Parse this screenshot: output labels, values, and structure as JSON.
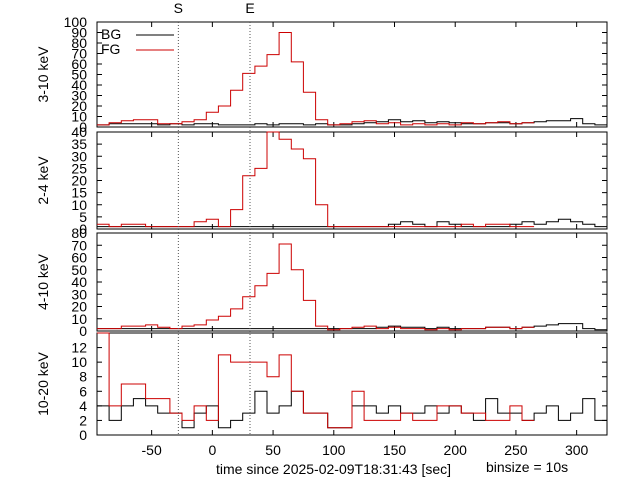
{
  "chart_data": {
    "type": "line",
    "step": true,
    "binsize_label": "binsize = 10s",
    "xlabel": "time since 2025-02-09T18:31:43 [sec]",
    "xlim": [
      -95,
      325
    ],
    "xticks": [
      -50,
      0,
      50,
      100,
      150,
      200,
      250,
      300
    ],
    "grid": false,
    "legend": {
      "placement": "top-left",
      "entries": [
        {
          "label": "BG",
          "color": "#000000"
        },
        {
          "label": "FG",
          "color": "#cc0000"
        }
      ]
    },
    "markers": [
      {
        "label": "S",
        "x": -28
      },
      {
        "label": "E",
        "x": 31
      }
    ],
    "bin_edges": [
      -95,
      -85,
      -75,
      -65,
      -55,
      -45,
      -35,
      -25,
      -15,
      -5,
      5,
      15,
      25,
      35,
      45,
      55,
      65,
      75,
      85,
      95,
      105,
      115,
      125,
      135,
      145,
      155,
      165,
      175,
      185,
      195,
      205,
      215,
      225,
      235,
      245,
      255,
      265,
      275,
      285,
      295,
      305,
      315,
      325
    ],
    "panels": [
      {
        "ylabel": "3-10 keV",
        "ylim": [
          0,
          100
        ],
        "yticks": [
          0,
          10,
          20,
          30,
          40,
          50,
          60,
          70,
          80,
          90,
          100
        ],
        "series": [
          {
            "name": "BG",
            "color": "#000000",
            "values": [
              2,
              3,
              3,
              3,
              3,
              2,
              3,
              2,
              3,
              3,
              2,
              2,
              2,
              3,
              2,
              3,
              3,
              2,
              3,
              2,
              2,
              3,
              4,
              5,
              7,
              5,
              6,
              4,
              5,
              4,
              3,
              3,
              4,
              4,
              3,
              4,
              5,
              6,
              6,
              8,
              3,
              2
            ]
          },
          {
            "name": "FG",
            "color": "#cc0000",
            "values": [
              2,
              4,
              6,
              7,
              7,
              3,
              3,
              5,
              7,
              14,
              20,
              35,
              51,
              58,
              69,
              90,
              62,
              33,
              7,
              2,
              3,
              5,
              6,
              3,
              4,
              2,
              3,
              2,
              3,
              2,
              4,
              3,
              4,
              5,
              3,
              4,
              null,
              null,
              null,
              null,
              null,
              null
            ]
          }
        ]
      },
      {
        "ylabel": "2-4 keV",
        "ylim": [
          0,
          40
        ],
        "yticks": [
          0,
          5,
          10,
          15,
          20,
          25,
          30,
          35,
          40
        ],
        "series": [
          {
            "name": "BG",
            "color": "#000000",
            "values": [
              1,
              1,
              1,
              1,
              1,
              1,
              1,
              1,
              1,
              1,
              1,
              1,
              1,
              1,
              1,
              1,
              1,
              1,
              1,
              1,
              1,
              1,
              1,
              1,
              2,
              3,
              2,
              1,
              3,
              2,
              1,
              1,
              1,
              1,
              2,
              3,
              2,
              3,
              4,
              3,
              2,
              1
            ]
          },
          {
            "name": "FG",
            "color": "#cc0000",
            "values": [
              2,
              1,
              2,
              2,
              1,
              1,
              1,
              1,
              3,
              4,
              1,
              8,
              22,
              25,
              40,
              37,
              33,
              29,
              10,
              1,
              1,
              1,
              1,
              1,
              1,
              1,
              1,
              1,
              1,
              1,
              2,
              1,
              2,
              2,
              1,
              1,
              null,
              null,
              null,
              null,
              null,
              null
            ]
          }
        ]
      },
      {
        "ylabel": "4-10 keV",
        "ylim": [
          0,
          80
        ],
        "yticks": [
          0,
          10,
          20,
          30,
          40,
          50,
          60,
          70,
          80
        ],
        "series": [
          {
            "name": "BG",
            "color": "#000000",
            "values": [
              2,
              2,
              2,
              2,
              2,
              2,
              2,
              2,
              2,
              2,
              2,
              2,
              2,
              2,
              2,
              2,
              2,
              2,
              2,
              2,
              2,
              2,
              2,
              3,
              4,
              3,
              3,
              2,
              3,
              2,
              2,
              2,
              3,
              3,
              2,
              3,
              4,
              5,
              6,
              6,
              2,
              1
            ]
          },
          {
            "name": "FG",
            "color": "#cc0000",
            "values": [
              2,
              2,
              4,
              4,
              5,
              3,
              2,
              4,
              5,
              9,
              12,
              18,
              28,
              37,
              47,
              71,
              50,
              25,
              4,
              1,
              2,
              3,
              4,
              2,
              3,
              2,
              2,
              1,
              2,
              1,
              2,
              2,
              3,
              3,
              2,
              3,
              null,
              null,
              null,
              null,
              null,
              null
            ]
          }
        ]
      },
      {
        "ylabel": "10-20 keV",
        "ylim": [
          0,
          14
        ],
        "yticks": [
          0,
          2,
          4,
          6,
          8,
          10,
          12
        ],
        "series": [
          {
            "name": "BG",
            "color": "#000000",
            "values": [
              4,
              2,
              4,
              5,
              4,
              3,
              3,
              1,
              3,
              4,
              1,
              2,
              3,
              6,
              3,
              4,
              6,
              3,
              3,
              1,
              1,
              4,
              4,
              3,
              4,
              3,
              3,
              4,
              3,
              4,
              3,
              2,
              5,
              3,
              3,
              2,
              3,
              4,
              2,
              3,
              5,
              2
            ]
          },
          {
            "name": "FG",
            "color": "#cc0000",
            "values": [
              14,
              4,
              7,
              7,
              5,
              5,
              3,
              2,
              4,
              2,
              11,
              10,
              10,
              10,
              8,
              11,
              6,
              3,
              3,
              1,
              1,
              6,
              2,
              2,
              2,
              3,
              2,
              2,
              4,
              4,
              3,
              3,
              2,
              2,
              4,
              2,
              null,
              null,
              null,
              null,
              null,
              null
            ]
          }
        ]
      }
    ]
  }
}
